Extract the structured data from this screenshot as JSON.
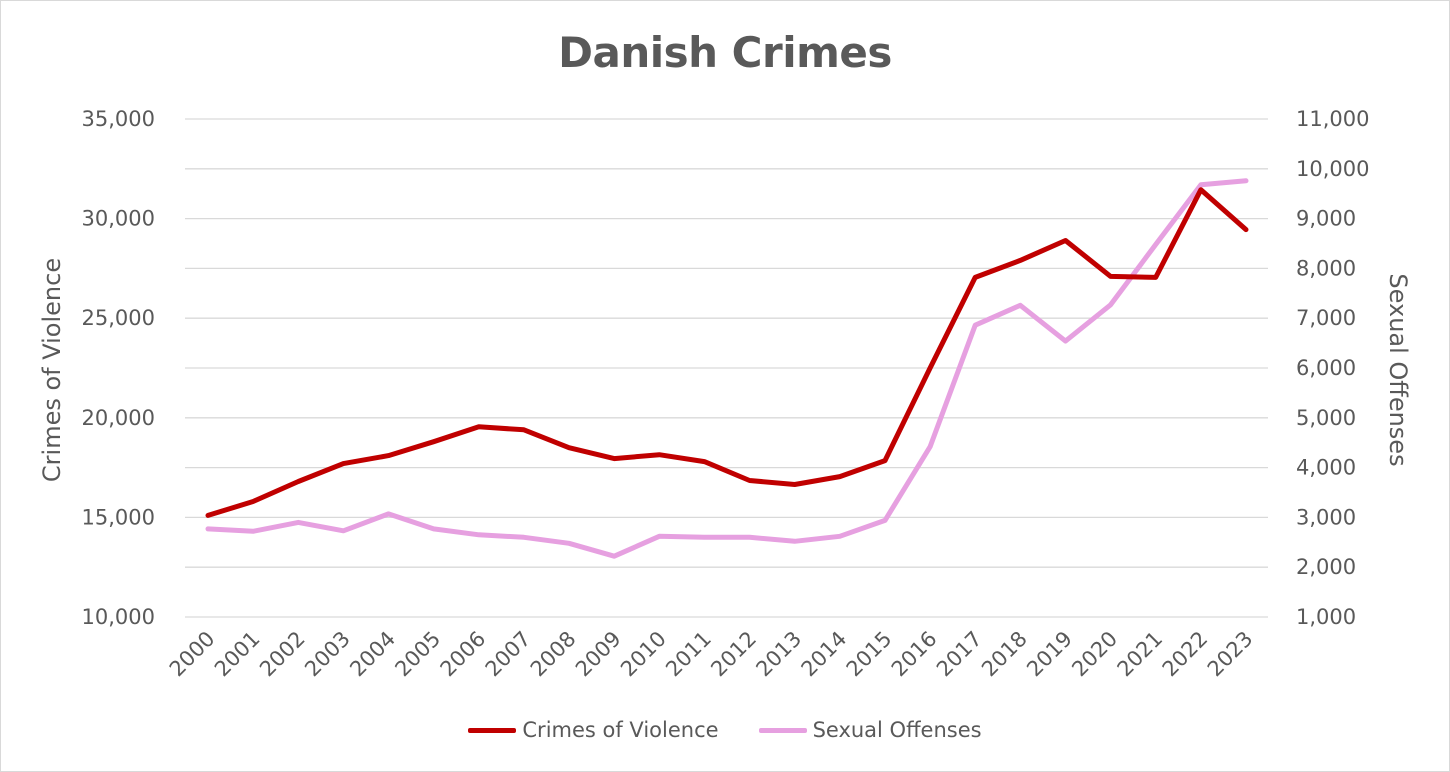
{
  "chart_data": {
    "type": "line",
    "title": "Danish Crimes",
    "x": [
      "2000",
      "2001",
      "2002",
      "2003",
      "2004",
      "2005",
      "2006",
      "2007",
      "2008",
      "2009",
      "2010",
      "2011",
      "2012",
      "2013",
      "2014",
      "2015",
      "2016",
      "2017",
      "2018",
      "2019",
      "2020",
      "2021",
      "2022",
      "2023"
    ],
    "y_left": {
      "label": "Crimes of Violence",
      "min": 10000,
      "max": 35000,
      "ticks": [
        10000,
        15000,
        20000,
        25000,
        30000,
        35000
      ],
      "tick_labels": [
        "10,000",
        "15,000",
        "20,000",
        "25,000",
        "30,000",
        "35,000"
      ]
    },
    "y_right": {
      "label": "Sexual Offenses",
      "min": 1000,
      "max": 11000,
      "ticks": [
        1000,
        2000,
        3000,
        4000,
        5000,
        6000,
        7000,
        8000,
        9000,
        10000,
        11000
      ],
      "tick_labels": [
        "1,000",
        "2,000",
        "3,000",
        "4,000",
        "5,000",
        "6,000",
        "7,000",
        "8,000",
        "9,000",
        "10,000",
        "11,000"
      ]
    },
    "grid": true,
    "legend_position": "bottom",
    "series": [
      {
        "name": "Crimes of Violence",
        "axis": "left",
        "color": "#c00000",
        "values": [
          15100,
          15800,
          16800,
          17700,
          18100,
          18800,
          19550,
          19400,
          18500,
          17950,
          18150,
          17800,
          16850,
          16650,
          17050,
          17850,
          22500,
          27050,
          27900,
          28900,
          27100,
          27050,
          31450,
          29450
        ]
      },
      {
        "name": "Sexual Offenses",
        "axis": "right",
        "color": "#e6a0e0",
        "values": [
          2770,
          2720,
          2900,
          2730,
          3070,
          2770,
          2650,
          2600,
          2480,
          2220,
          2620,
          2600,
          2600,
          2520,
          2620,
          2940,
          4420,
          6860,
          7260,
          6540,
          7270,
          8480,
          9680,
          9760
        ]
      }
    ]
  }
}
